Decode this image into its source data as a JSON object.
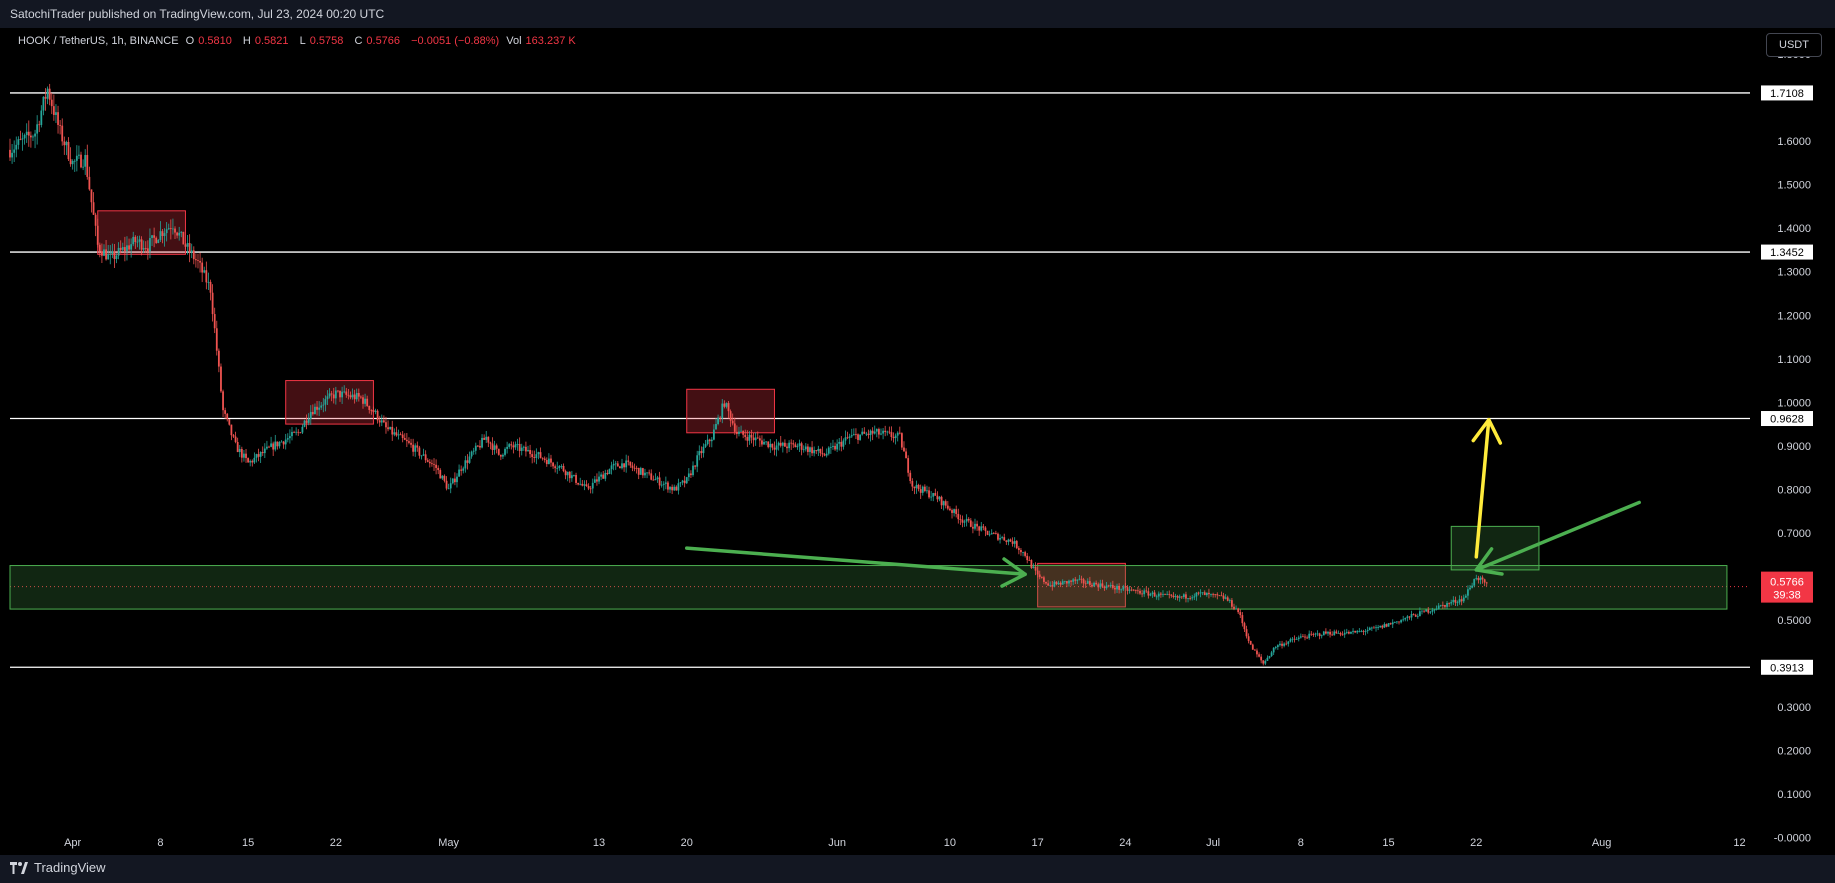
{
  "header": {
    "published": "SatochiTrader published on TradingView.com, Jul 23, 2024 00:20 UTC"
  },
  "legend": {
    "symbol": "HOOK / TetherUS, 1h, BINANCE",
    "o_label": "O",
    "o": "0.5810",
    "h_label": "H",
    "h": "0.5821",
    "l_label": "L",
    "l": "0.5758",
    "c_label": "C",
    "c": "0.5766",
    "change": "−0.0051 (−0.88%)",
    "vol_label": "Vol",
    "vol": "163.237 K"
  },
  "currency_button": "USDT",
  "footer": {
    "brand": "TradingView"
  },
  "colors": {
    "up": "#26a69a",
    "down": "#ef5350",
    "price_badge": "#f23645",
    "arrow_green": "#4caf50",
    "arrow_yellow": "#ffeb3b"
  },
  "chart_data": {
    "type": "candlestick",
    "timeframe": "1h",
    "x_range": [
      "2024-03-27",
      "2024-08-13"
    ],
    "y_range": [
      -0.04,
      1.86
    ],
    "y_ticks": [
      "1.8000",
      "1.6000",
      "1.5000",
      "1.4000",
      "1.3000",
      "1.2000",
      "1.1000",
      "1.0000",
      "0.9000",
      "0.8000",
      "0.7000",
      "0.6000",
      "0.5000",
      "0.3000",
      "0.2000",
      "0.1000",
      "-0.0000"
    ],
    "y_tick_values": [
      1.8,
      1.6,
      1.5,
      1.4,
      1.3,
      1.2,
      1.1,
      1.0,
      0.9,
      0.8,
      0.7,
      0.6,
      0.5,
      0.3,
      0.2,
      0.1,
      0.0
    ],
    "x_ticks": [
      {
        "label": "Apr",
        "date": "2024-04-01"
      },
      {
        "label": "8",
        "date": "2024-04-08"
      },
      {
        "label": "15",
        "date": "2024-04-15"
      },
      {
        "label": "22",
        "date": "2024-04-22"
      },
      {
        "label": "May",
        "date": "2024-05-01"
      },
      {
        "label": "13",
        "date": "2024-05-13"
      },
      {
        "label": "20",
        "date": "2024-05-20"
      },
      {
        "label": "Jun",
        "date": "2024-06-01"
      },
      {
        "label": "10",
        "date": "2024-06-10"
      },
      {
        "label": "17",
        "date": "2024-06-17"
      },
      {
        "label": "24",
        "date": "2024-06-24"
      },
      {
        "label": "Jul",
        "date": "2024-07-01"
      },
      {
        "label": "8",
        "date": "2024-07-08"
      },
      {
        "label": "15",
        "date": "2024-07-15"
      },
      {
        "label": "22",
        "date": "2024-07-22"
      },
      {
        "label": "Aug",
        "date": "2024-08-01"
      },
      {
        "label": "12",
        "date": "2024-08-12"
      }
    ],
    "horizontal_levels": [
      {
        "value": 1.7108,
        "label": "1.7108"
      },
      {
        "value": 1.3452,
        "label": "1.3452"
      },
      {
        "value": 0.9628,
        "label": "0.9628"
      },
      {
        "value": 0.3913,
        "label": "0.3913"
      }
    ],
    "last_price": {
      "value": 0.5766,
      "label": "0.5766",
      "countdown": "39:38"
    },
    "price_path": [
      [
        "2024-03-27",
        1.58
      ],
      [
        "2024-03-29",
        1.62
      ],
      [
        "2024-03-30",
        1.72
      ],
      [
        "2024-03-31",
        1.62
      ],
      [
        "2024-04-01",
        1.55
      ],
      [
        "2024-04-02",
        1.56
      ],
      [
        "2024-04-03",
        1.36
      ],
      [
        "2024-04-04",
        1.33
      ],
      [
        "2024-04-05",
        1.35
      ],
      [
        "2024-04-06",
        1.37
      ],
      [
        "2024-04-07",
        1.36
      ],
      [
        "2024-04-08",
        1.39
      ],
      [
        "2024-04-09",
        1.41
      ],
      [
        "2024-04-10",
        1.36
      ],
      [
        "2024-04-11",
        1.32
      ],
      [
        "2024-04-12",
        1.26
      ],
      [
        "2024-04-13",
        0.98
      ],
      [
        "2024-04-14",
        0.9
      ],
      [
        "2024-04-15",
        0.86
      ],
      [
        "2024-04-16",
        0.88
      ],
      [
        "2024-04-17",
        0.9
      ],
      [
        "2024-04-19",
        0.93
      ],
      [
        "2024-04-20",
        0.98
      ],
      [
        "2024-04-22",
        1.02
      ],
      [
        "2024-04-24",
        1.01
      ],
      [
        "2024-04-25",
        0.98
      ],
      [
        "2024-04-26",
        0.94
      ],
      [
        "2024-04-28",
        0.9
      ],
      [
        "2024-04-30",
        0.85
      ],
      [
        "2024-05-01",
        0.8
      ],
      [
        "2024-05-02",
        0.85
      ],
      [
        "2024-05-04",
        0.92
      ],
      [
        "2024-05-05",
        0.88
      ],
      [
        "2024-05-06",
        0.9
      ],
      [
        "2024-05-08",
        0.88
      ],
      [
        "2024-05-10",
        0.85
      ],
      [
        "2024-05-12",
        0.8
      ],
      [
        "2024-05-14",
        0.85
      ],
      [
        "2024-05-15",
        0.86
      ],
      [
        "2024-05-17",
        0.83
      ],
      [
        "2024-05-19",
        0.8
      ],
      [
        "2024-05-20",
        0.82
      ],
      [
        "2024-05-21",
        0.88
      ],
      [
        "2024-05-22",
        0.92
      ],
      [
        "2024-05-23",
        1.0
      ],
      [
        "2024-05-24",
        0.93
      ],
      [
        "2024-05-25",
        0.92
      ],
      [
        "2024-05-27",
        0.9
      ],
      [
        "2024-05-29",
        0.9
      ],
      [
        "2024-05-31",
        0.88
      ],
      [
        "2024-06-02",
        0.92
      ],
      [
        "2024-06-04",
        0.93
      ],
      [
        "2024-06-06",
        0.92
      ],
      [
        "2024-06-07",
        0.81
      ],
      [
        "2024-06-09",
        0.78
      ],
      [
        "2024-06-11",
        0.73
      ],
      [
        "2024-06-13",
        0.7
      ],
      [
        "2024-06-15",
        0.68
      ],
      [
        "2024-06-16",
        0.65
      ],
      [
        "2024-06-17",
        0.6
      ],
      [
        "2024-06-18",
        0.58
      ],
      [
        "2024-06-20",
        0.59
      ],
      [
        "2024-06-22",
        0.58
      ],
      [
        "2024-06-24",
        0.57
      ],
      [
        "2024-06-26",
        0.56
      ],
      [
        "2024-06-28",
        0.55
      ],
      [
        "2024-06-30",
        0.56
      ],
      [
        "2024-07-02",
        0.55
      ],
      [
        "2024-07-03",
        0.52
      ],
      [
        "2024-07-04",
        0.44
      ],
      [
        "2024-07-05",
        0.4
      ],
      [
        "2024-07-06",
        0.44
      ],
      [
        "2024-07-08",
        0.46
      ],
      [
        "2024-07-10",
        0.47
      ],
      [
        "2024-07-12",
        0.47
      ],
      [
        "2024-07-14",
        0.48
      ],
      [
        "2024-07-16",
        0.5
      ],
      [
        "2024-07-18",
        0.52
      ],
      [
        "2024-07-20",
        0.54
      ],
      [
        "2024-07-21",
        0.55
      ],
      [
        "2024-07-22",
        0.6
      ],
      [
        "2024-07-22T22:00",
        0.5766
      ]
    ],
    "zones": [
      {
        "kind": "resistance",
        "x0": "2024-04-03",
        "x1": "2024-04-10",
        "y0": 1.34,
        "y1": 1.44
      },
      {
        "kind": "resistance",
        "x0": "2024-04-18",
        "x1": "2024-04-25",
        "y0": 0.95,
        "y1": 1.05
      },
      {
        "kind": "resistance",
        "x0": "2024-05-20",
        "x1": "2024-05-27",
        "y0": 0.93,
        "y1": 1.03
      },
      {
        "kind": "resistance",
        "x0": "2024-06-17",
        "x1": "2024-06-24",
        "y0": 0.53,
        "y1": 0.63
      },
      {
        "kind": "support_band",
        "x0": "2024-03-27",
        "x1": "2024-08-11",
        "y0": 0.525,
        "y1": 0.625
      },
      {
        "kind": "target",
        "x0": "2024-07-20",
        "x1": "2024-07-27",
        "y0": 0.615,
        "y1": 0.715
      }
    ],
    "arrows": [
      {
        "color": "green",
        "from": [
          "2024-05-20",
          0.665
        ],
        "to": [
          "2024-06-16",
          0.605
        ]
      },
      {
        "color": "green",
        "from": [
          "2024-08-04",
          0.77
        ],
        "to": [
          "2024-07-22",
          0.615
        ]
      },
      {
        "color": "yellow",
        "from": [
          "2024-07-22",
          0.645
        ],
        "to": [
          "2024-07-23",
          0.96
        ]
      }
    ]
  }
}
